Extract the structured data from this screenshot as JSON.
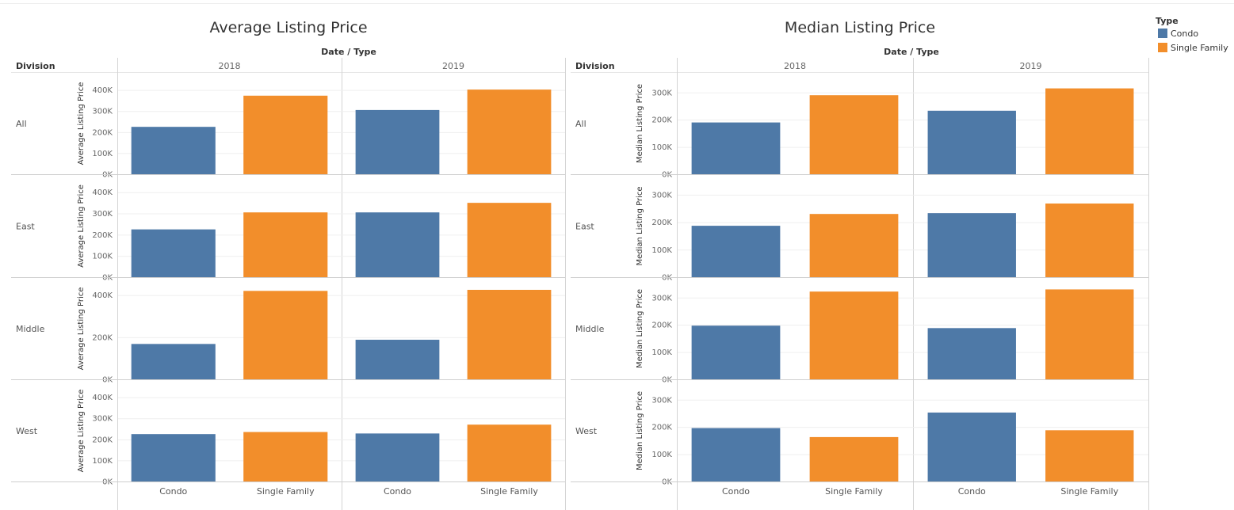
{
  "colors": {
    "Condo": "#4e79a7",
    "Single Family": "#f28e2b"
  },
  "legend": {
    "title": "Type",
    "items": [
      "Condo",
      "Single Family"
    ]
  },
  "column_header": "Date / Type",
  "row_header": "Division",
  "chart_data": [
    {
      "type": "bar",
      "title": "Average Listing Price",
      "ylabel": "Average Listing Price",
      "years": [
        "2018",
        "2019"
      ],
      "categories": [
        "Condo",
        "Single Family"
      ],
      "rows": [
        {
          "division": "All",
          "ylim": [
            0,
            440000
          ],
          "yticks": [
            0,
            100000,
            200000,
            300000,
            400000
          ],
          "tick_labels": [
            "0K",
            "100K",
            "200K",
            "300K",
            "400K"
          ],
          "values": {
            "2018": [
              225000,
              373000
            ],
            "2019": [
              305000,
              402000
            ]
          }
        },
        {
          "division": "East",
          "ylim": [
            0,
            440000
          ],
          "yticks": [
            0,
            100000,
            200000,
            300000,
            400000
          ],
          "tick_labels": [
            "0K",
            "100K",
            "200K",
            "300K",
            "400K"
          ],
          "values": {
            "2018": [
              225000,
              305000
            ],
            "2019": [
              305000,
              350000
            ]
          }
        },
        {
          "division": "Middle",
          "ylim": [
            0,
            440000
          ],
          "yticks": [
            0,
            200000,
            400000
          ],
          "tick_labels": [
            "0K",
            "200K",
            "400K"
          ],
          "values": {
            "2018": [
              168000,
              420000
            ],
            "2019": [
              188000,
              425000
            ]
          }
        },
        {
          "division": "West",
          "ylim": [
            0,
            440000
          ],
          "yticks": [
            0,
            100000,
            200000,
            300000,
            400000
          ],
          "tick_labels": [
            "0K",
            "100K",
            "200K",
            "300K",
            "400K"
          ],
          "values": {
            "2018": [
              225000,
              235000
            ],
            "2019": [
              228000,
              270000
            ]
          }
        }
      ]
    },
    {
      "type": "bar",
      "title": "Median Listing Price",
      "ylabel": "Median Listing Price",
      "years": [
        "2018",
        "2019"
      ],
      "categories": [
        "Condo",
        "Single Family"
      ],
      "rows": [
        {
          "division": "All",
          "ylim": [
            0,
            340000
          ],
          "yticks": [
            0,
            100000,
            200000,
            300000
          ],
          "tick_labels": [
            "0K",
            "100K",
            "200K",
            "300K"
          ],
          "values": {
            "2018": [
              190000,
              290000
            ],
            "2019": [
              233000,
              315000
            ]
          }
        },
        {
          "division": "East",
          "ylim": [
            0,
            340000
          ],
          "yticks": [
            0,
            100000,
            200000,
            300000
          ],
          "tick_labels": [
            "0K",
            "100K",
            "200K",
            "300K"
          ],
          "values": {
            "2018": [
              187000,
              230000
            ],
            "2019": [
              233000,
              268000
            ]
          }
        },
        {
          "division": "Middle",
          "ylim": [
            0,
            340000
          ],
          "yticks": [
            0,
            100000,
            200000,
            300000
          ],
          "tick_labels": [
            "0K",
            "100K",
            "200K",
            "300K"
          ],
          "values": {
            "2018": [
              197000,
              322000
            ],
            "2019": [
              188000,
              330000
            ]
          }
        },
        {
          "division": "West",
          "ylim": [
            0,
            340000
          ],
          "yticks": [
            0,
            100000,
            200000,
            300000
          ],
          "tick_labels": [
            "0K",
            "100K",
            "200K",
            "300K"
          ],
          "values": {
            "2018": [
              196000,
              163000
            ],
            "2019": [
              253000,
              188000
            ]
          }
        }
      ]
    }
  ]
}
